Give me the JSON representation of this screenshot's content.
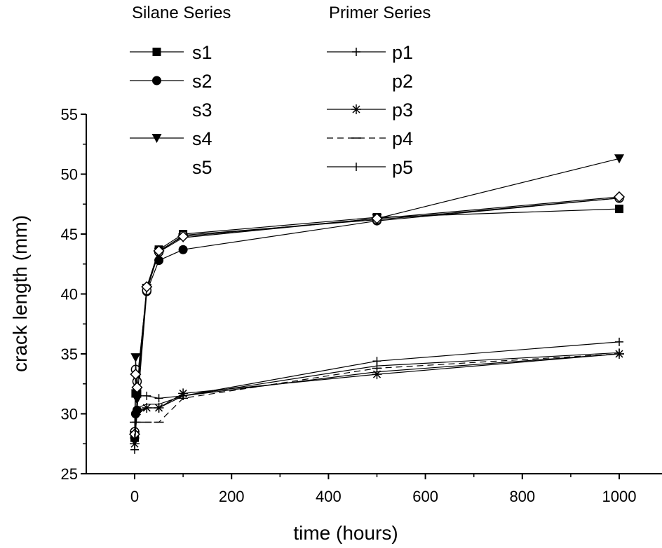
{
  "chart_data": {
    "type": "line",
    "title": "",
    "xlabel": "time (hours)",
    "ylabel": "crack length (mm)",
    "xlim": [
      -100,
      1080
    ],
    "ylim": [
      25,
      55
    ],
    "x_ticks": [
      0,
      200,
      400,
      600,
      800,
      1000
    ],
    "y_ticks": [
      25,
      30,
      35,
      40,
      45,
      50,
      55
    ],
    "grid": false,
    "legend_groups": [
      {
        "heading": "Silane Series",
        "entries": [
          "s1",
          "s2",
          "s3",
          "s4",
          "s5"
        ]
      },
      {
        "heading": "Primer Series",
        "entries": [
          "p1",
          "p2",
          "p3",
          "p4",
          "p5"
        ]
      }
    ],
    "series": [
      {
        "name": "s1",
        "marker": "square",
        "x": [
          0,
          2,
          5,
          25,
          50,
          100,
          500,
          1000
        ],
        "y": [
          28.0,
          31.7,
          31.7,
          40.5,
          43.7,
          45.0,
          46.4,
          47.1
        ]
      },
      {
        "name": "s2",
        "marker": "circle",
        "x": [
          0,
          2,
          5,
          25,
          50,
          100,
          500,
          1000
        ],
        "y": [
          28.0,
          30.0,
          30.3,
          40.2,
          42.8,
          43.7,
          46.1,
          48.0
        ]
      },
      {
        "name": "s3",
        "marker": "open-circle",
        "x": [
          0,
          2,
          5,
          25,
          50,
          100,
          500,
          1000
        ],
        "y": [
          28.5,
          33.7,
          32.7,
          40.3,
          43.5,
          44.9,
          46.2,
          48.0
        ]
      },
      {
        "name": "s4",
        "marker": "triangle-down",
        "x": [
          0,
          2,
          5,
          25,
          50,
          100,
          500,
          1000
        ],
        "y": [
          28.2,
          34.7,
          31.2,
          40.5,
          43.5,
          44.7,
          46.3,
          51.3
        ]
      },
      {
        "name": "s5",
        "marker": "open-diamond",
        "x": [
          0,
          2,
          5,
          25,
          50,
          100,
          500,
          1000
        ],
        "y": [
          28.3,
          33.3,
          32.2,
          40.6,
          43.6,
          44.8,
          46.3,
          48.1
        ]
      },
      {
        "name": "p1",
        "marker": "plus",
        "x": [
          0,
          5,
          25,
          50,
          100,
          500,
          1000
        ],
        "y": [
          27.0,
          31.5,
          31.5,
          31.3,
          31.5,
          34.4,
          36.0
        ]
      },
      {
        "name": "p2",
        "marker": "none",
        "x": [
          0,
          5,
          25,
          50,
          100,
          500,
          1000
        ],
        "y": [
          28.5,
          30.5,
          30.8,
          30.8,
          31.5,
          33.5,
          35.0
        ]
      },
      {
        "name": "p3",
        "marker": "asterisk",
        "x": [
          0,
          5,
          25,
          50,
          100,
          500,
          1000
        ],
        "y": [
          27.5,
          30.2,
          30.5,
          30.5,
          31.7,
          33.3,
          35.0
        ]
      },
      {
        "name": "p4",
        "marker": "dash",
        "x": [
          0,
          5,
          25,
          50,
          100,
          500,
          1000
        ],
        "y": [
          29.3,
          29.3,
          29.3,
          29.3,
          31.3,
          33.8,
          35.0
        ]
      },
      {
        "name": "p5",
        "marker": "vbar",
        "x": [
          0,
          5,
          25,
          50,
          100,
          500,
          1000
        ],
        "y": [
          28.0,
          30.0,
          30.5,
          30.5,
          31.5,
          34.0,
          35.1
        ]
      }
    ]
  }
}
